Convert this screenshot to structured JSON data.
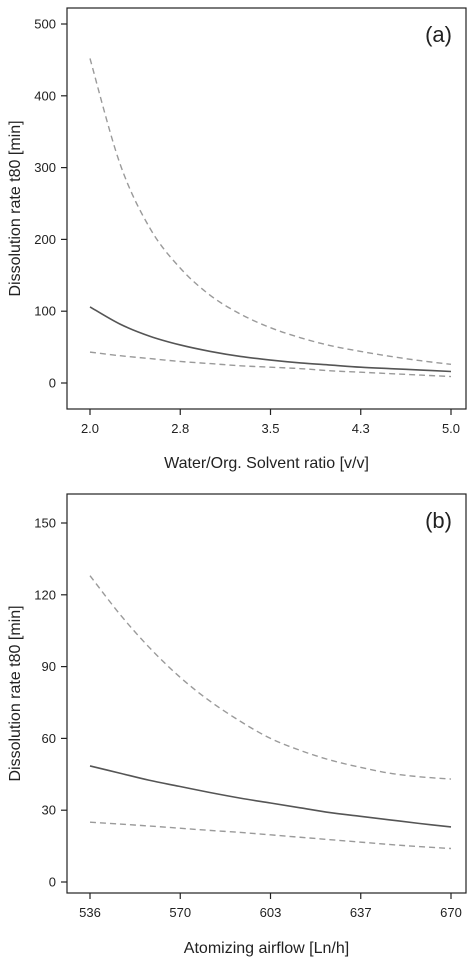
{
  "chart_data": [
    {
      "type": "line",
      "panel_label": "(a)",
      "xlabel": "Water/Org. Solvent ratio [v/v]",
      "ylabel": "Dissolution rate t80 [min]",
      "xlim": [
        2.0,
        5.0
      ],
      "ylim": [
        0,
        500
      ],
      "x_ticks": [
        "2.0",
        "2.8",
        "3.5",
        "4.3",
        "5.0"
      ],
      "x_tick_values": [
        2.0,
        2.75,
        3.5,
        4.25,
        5.0
      ],
      "y_ticks": [
        "0",
        "100",
        "200",
        "300",
        "400",
        "500"
      ],
      "y_tick_values": [
        0,
        100,
        200,
        300,
        400,
        500
      ],
      "grid": false,
      "series": [
        {
          "role": "upper-ci",
          "style": "dashed",
          "color": "#9a9a9a",
          "x": [
            2.0,
            2.25,
            2.5,
            2.75,
            3.0,
            3.25,
            3.5,
            3.75,
            4.0,
            4.25,
            4.5,
            4.75,
            5.0
          ],
          "y": [
            452,
            305,
            215,
            160,
            122,
            96,
            77,
            63,
            52,
            44,
            37,
            31,
            26
          ]
        },
        {
          "role": "fit",
          "style": "solid",
          "color": "#555555",
          "x": [
            2.0,
            2.25,
            2.5,
            2.75,
            3.0,
            3.25,
            3.5,
            3.75,
            4.0,
            4.25,
            4.5,
            4.75,
            5.0
          ],
          "y": [
            106,
            82,
            65,
            53,
            44,
            37,
            32,
            28,
            25,
            22,
            20,
            18,
            16
          ]
        },
        {
          "role": "lower-ci",
          "style": "dashed",
          "color": "#9a9a9a",
          "x": [
            2.0,
            2.25,
            2.5,
            2.75,
            3.0,
            3.25,
            3.5,
            3.75,
            4.0,
            4.25,
            4.5,
            4.75,
            5.0
          ],
          "y": [
            43,
            38,
            34,
            30,
            27,
            24,
            22,
            20,
            17,
            15,
            13,
            11,
            9
          ]
        }
      ]
    },
    {
      "type": "line",
      "panel_label": "(b)",
      "xlabel": "Atomizing airflow [Ln/h]",
      "ylabel": "Dissolution rate t80 [min]",
      "xlim": [
        536,
        670
      ],
      "ylim": [
        0,
        150
      ],
      "x_ticks": [
        "536",
        "570",
        "603",
        "637",
        "670"
      ],
      "x_tick_values": [
        536,
        569.5,
        603,
        636.5,
        670
      ],
      "y_ticks": [
        "0",
        "30",
        "60",
        "90",
        "120",
        "150"
      ],
      "y_tick_values": [
        0,
        30,
        60,
        90,
        120,
        150
      ],
      "grid": false,
      "series": [
        {
          "role": "upper-ci",
          "style": "dashed",
          "color": "#9a9a9a",
          "x": [
            536,
            547,
            558,
            569,
            580,
            592,
            603,
            614,
            625,
            636,
            647,
            658,
            670
          ],
          "y": [
            128,
            112,
            98,
            86,
            76,
            67,
            60,
            55,
            51,
            48,
            45.5,
            44,
            43
          ]
        },
        {
          "role": "fit",
          "style": "solid",
          "color": "#555555",
          "x": [
            536,
            547,
            558,
            569,
            580,
            592,
            603,
            614,
            625,
            636,
            647,
            658,
            670
          ],
          "y": [
            48.5,
            45.5,
            42.5,
            40,
            37.5,
            35,
            33,
            31,
            29,
            27.5,
            26,
            24.5,
            23
          ]
        },
        {
          "role": "lower-ci",
          "style": "dashed",
          "color": "#9a9a9a",
          "x": [
            536,
            547,
            558,
            569,
            580,
            592,
            603,
            614,
            625,
            636,
            647,
            658,
            670
          ],
          "y": [
            25,
            24.2,
            23.4,
            22.5,
            21.6,
            20.7,
            19.7,
            18.7,
            17.7,
            16.7,
            15.7,
            14.8,
            14
          ]
        }
      ]
    }
  ]
}
